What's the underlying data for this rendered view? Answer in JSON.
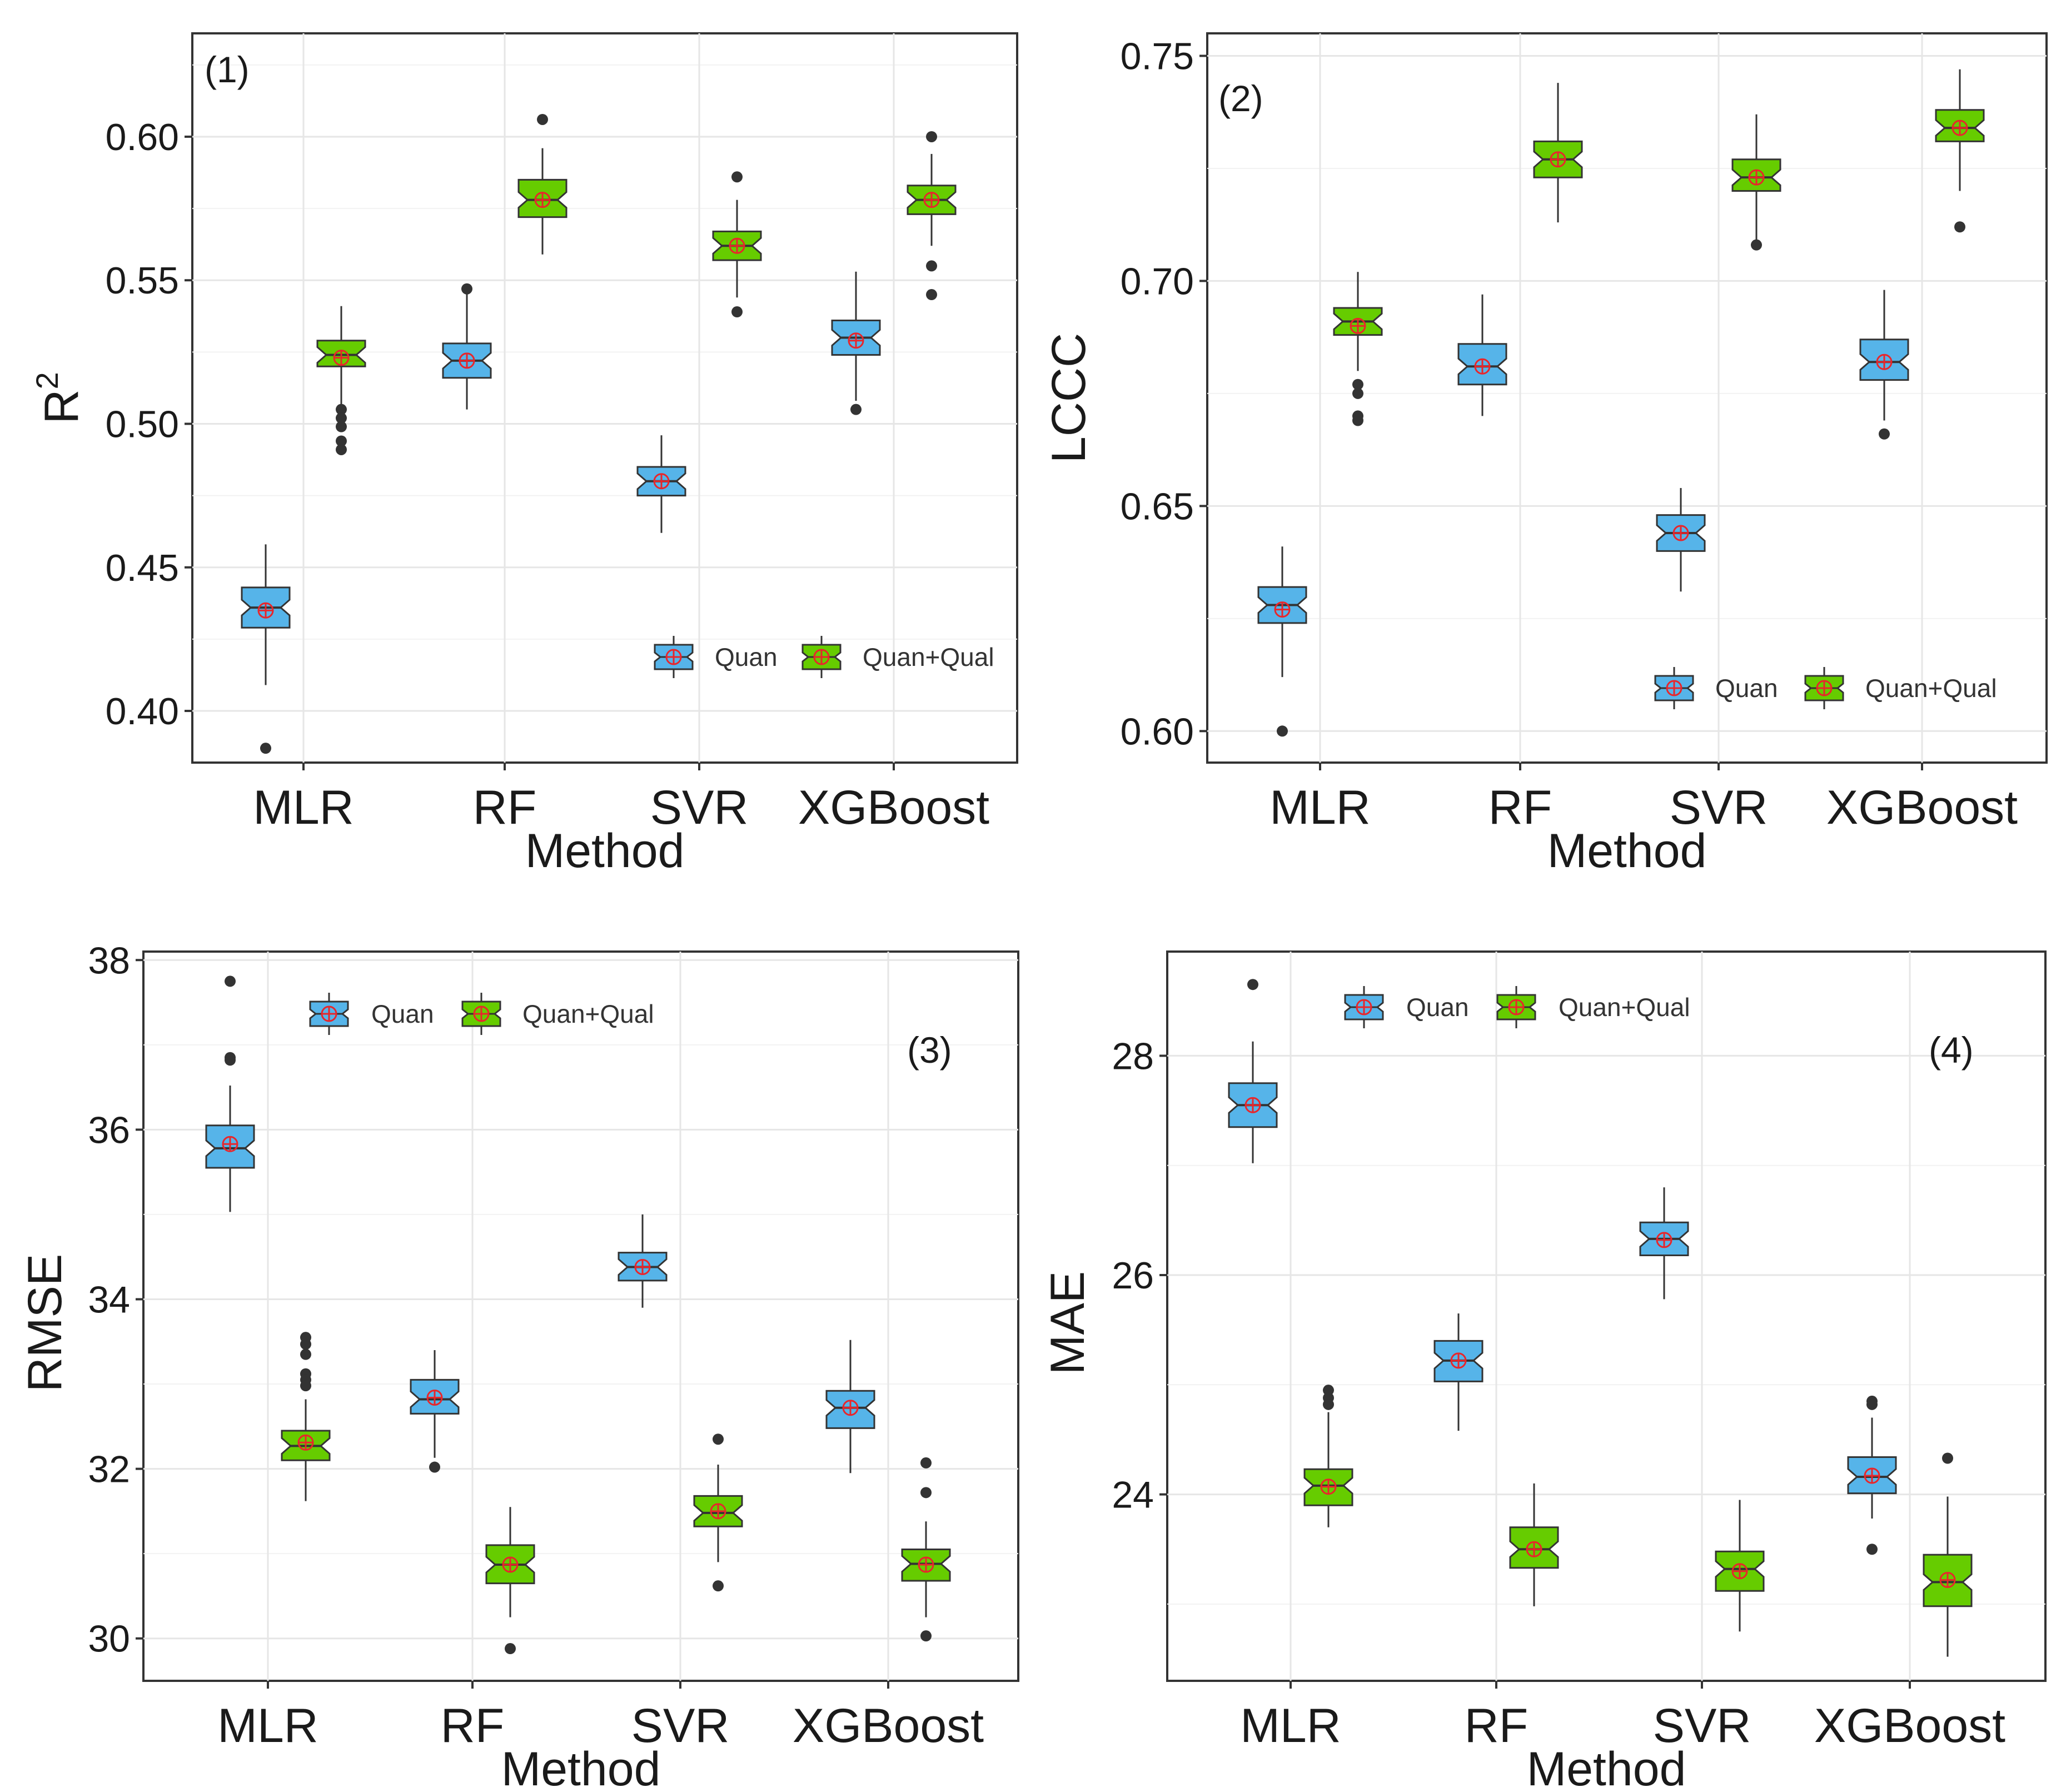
{
  "colors": {
    "quan": "#56B4E9",
    "quan_qual": "#66CC00",
    "mean_marker": "#E8262B",
    "outline": "#333333",
    "grid": "#e6e6e6"
  },
  "chart_data": [
    {
      "type": "box",
      "label": "(1)",
      "xlabel": "Method",
      "ylabel": "R",
      "ylabel_sup": "2",
      "ylim": [
        0.382,
        0.636
      ],
      "yticks": [
        0.4,
        0.45,
        0.5,
        0.55,
        0.6
      ],
      "ytick_labels": [
        "0.40",
        "0.45",
        "0.50",
        "0.55",
        "0.60"
      ],
      "legend_position": "bottom-right",
      "categories": [
        "MLR",
        "RF",
        "SVR",
        "XGBoost"
      ],
      "series": [
        {
          "name": "Quan",
          "color": "#56B4E9",
          "boxes": [
            {
              "min": 0.409,
              "q1": 0.429,
              "median": 0.436,
              "q3": 0.443,
              "max": 0.458,
              "mean": 0.435,
              "outliers": [
                0.387
              ]
            },
            {
              "min": 0.505,
              "q1": 0.516,
              "median": 0.522,
              "q3": 0.528,
              "max": 0.546,
              "mean": 0.522,
              "outliers": [
                0.547
              ]
            },
            {
              "min": 0.462,
              "q1": 0.475,
              "median": 0.48,
              "q3": 0.485,
              "max": 0.496,
              "mean": 0.48,
              "outliers": []
            },
            {
              "min": 0.508,
              "q1": 0.524,
              "median": 0.53,
              "q3": 0.536,
              "max": 0.553,
              "mean": 0.529,
              "outliers": [
                0.505
              ]
            }
          ]
        },
        {
          "name": "Quan+Qual",
          "color": "#66CC00",
          "boxes": [
            {
              "min": 0.506,
              "q1": 0.52,
              "median": 0.524,
              "q3": 0.529,
              "max": 0.541,
              "mean": 0.523,
              "outliers": [
                0.505,
                0.502,
                0.499,
                0.494,
                0.491
              ]
            },
            {
              "min": 0.559,
              "q1": 0.572,
              "median": 0.578,
              "q3": 0.585,
              "max": 0.596,
              "mean": 0.578,
              "outliers": [
                0.606
              ]
            },
            {
              "min": 0.544,
              "q1": 0.557,
              "median": 0.562,
              "q3": 0.567,
              "max": 0.578,
              "mean": 0.562,
              "outliers": [
                0.539,
                0.586
              ]
            },
            {
              "min": 0.562,
              "q1": 0.573,
              "median": 0.578,
              "q3": 0.583,
              "max": 0.594,
              "mean": 0.578,
              "outliers": [
                0.6,
                0.555,
                0.545
              ]
            }
          ]
        }
      ]
    },
    {
      "type": "box",
      "label": "(2)",
      "xlabel": "Method",
      "ylabel": "LCCC",
      "ylabel_sup": "",
      "ylim": [
        0.593,
        0.755
      ],
      "yticks": [
        0.6,
        0.65,
        0.7,
        0.75
      ],
      "ytick_labels": [
        "0.60",
        "0.65",
        "0.70",
        "0.75"
      ],
      "legend_position": "bottom-right",
      "categories": [
        "MLR",
        "RF",
        "SVR",
        "XGBoost"
      ],
      "series": [
        {
          "name": "Quan",
          "color": "#56B4E9",
          "boxes": [
            {
              "min": 0.612,
              "q1": 0.624,
              "median": 0.628,
              "q3": 0.632,
              "max": 0.641,
              "mean": 0.627,
              "outliers": [
                0.6
              ]
            },
            {
              "min": 0.67,
              "q1": 0.677,
              "median": 0.681,
              "q3": 0.686,
              "max": 0.697,
              "mean": 0.681,
              "outliers": []
            },
            {
              "min": 0.631,
              "q1": 0.64,
              "median": 0.644,
              "q3": 0.648,
              "max": 0.654,
              "mean": 0.644,
              "outliers": []
            },
            {
              "min": 0.669,
              "q1": 0.678,
              "median": 0.682,
              "q3": 0.687,
              "max": 0.698,
              "mean": 0.682,
              "outliers": [
                0.666
              ]
            }
          ]
        },
        {
          "name": "Quan+Qual",
          "color": "#66CC00",
          "boxes": [
            {
              "min": 0.68,
              "q1": 0.688,
              "median": 0.691,
              "q3": 0.694,
              "max": 0.702,
              "mean": 0.69,
              "outliers": [
                0.677,
                0.675,
                0.67,
                0.669
              ]
            },
            {
              "min": 0.713,
              "q1": 0.723,
              "median": 0.727,
              "q3": 0.731,
              "max": 0.744,
              "mean": 0.727,
              "outliers": []
            },
            {
              "min": 0.709,
              "q1": 0.72,
              "median": 0.723,
              "q3": 0.727,
              "max": 0.737,
              "mean": 0.723,
              "outliers": [
                0.708
              ]
            },
            {
              "min": 0.72,
              "q1": 0.731,
              "median": 0.734,
              "q3": 0.738,
              "max": 0.747,
              "mean": 0.734,
              "outliers": [
                0.712
              ]
            }
          ]
        }
      ]
    },
    {
      "type": "box",
      "label": "(3)",
      "xlabel": "Method",
      "ylabel": "RMSE",
      "ylabel_sup": "",
      "ylim": [
        29.5,
        38.1
      ],
      "yticks": [
        30,
        32,
        34,
        36,
        38
      ],
      "ytick_labels": [
        "30",
        "32",
        "34",
        "36",
        "38"
      ],
      "legend_position": "top-left",
      "categories": [
        "MLR",
        "RF",
        "SVR",
        "XGBoost"
      ],
      "series": [
        {
          "name": "Quan",
          "color": "#56B4E9",
          "boxes": [
            {
              "min": 35.03,
              "q1": 35.55,
              "median": 35.78,
              "q3": 36.05,
              "max": 36.52,
              "mean": 35.83,
              "outliers": [
                37.75,
                36.85,
                36.82
              ]
            },
            {
              "min": 32.13,
              "q1": 32.65,
              "median": 32.82,
              "q3": 33.05,
              "max": 33.4,
              "mean": 32.84,
              "outliers": [
                32.02
              ]
            },
            {
              "min": 33.9,
              "q1": 34.22,
              "median": 34.38,
              "q3": 34.55,
              "max": 35.0,
              "mean": 34.38,
              "outliers": []
            },
            {
              "min": 31.95,
              "q1": 32.48,
              "median": 32.72,
              "q3": 32.92,
              "max": 33.52,
              "mean": 32.72,
              "outliers": []
            }
          ]
        },
        {
          "name": "Quan+Qual",
          "color": "#66CC00",
          "boxes": [
            {
              "min": 31.62,
              "q1": 32.1,
              "median": 32.27,
              "q3": 32.45,
              "max": 32.82,
              "mean": 32.31,
              "outliers": [
                33.55,
                33.47,
                33.35,
                33.12,
                33.05,
                32.98
              ]
            },
            {
              "min": 30.25,
              "q1": 30.65,
              "median": 30.87,
              "q3": 31.1,
              "max": 31.55,
              "mean": 30.87,
              "outliers": [
                29.88
              ]
            },
            {
              "min": 30.9,
              "q1": 31.32,
              "median": 31.48,
              "q3": 31.68,
              "max": 32.05,
              "mean": 31.5,
              "outliers": [
                32.35,
                30.62
              ]
            },
            {
              "min": 30.25,
              "q1": 30.68,
              "median": 30.88,
              "q3": 31.05,
              "max": 31.38,
              "mean": 30.87,
              "outliers": [
                32.07,
                31.72,
                30.03
              ]
            }
          ]
        }
      ]
    },
    {
      "type": "box",
      "label": "(4)",
      "xlabel": "Method",
      "ylabel": "MAE",
      "ylabel_sup": "",
      "ylim": [
        22.3,
        28.95
      ],
      "yticks": [
        24,
        26,
        28
      ],
      "ytick_labels": [
        "24",
        "26",
        "28"
      ],
      "legend_position": "top-left",
      "categories": [
        "MLR",
        "RF",
        "SVR",
        "XGBoost"
      ],
      "series": [
        {
          "name": "Quan",
          "color": "#56B4E9",
          "boxes": [
            {
              "min": 27.02,
              "q1": 27.35,
              "median": 27.55,
              "q3": 27.75,
              "max": 28.13,
              "mean": 27.55,
              "outliers": [
                28.65
              ]
            },
            {
              "min": 24.58,
              "q1": 25.03,
              "median": 25.22,
              "q3": 25.4,
              "max": 25.65,
              "mean": 25.22,
              "outliers": []
            },
            {
              "min": 25.78,
              "q1": 26.18,
              "median": 26.33,
              "q3": 26.48,
              "max": 26.8,
              "mean": 26.32,
              "outliers": []
            },
            {
              "min": 23.78,
              "q1": 24.01,
              "median": 24.16,
              "q3": 24.34,
              "max": 24.7,
              "mean": 24.17,
              "outliers": [
                24.85,
                24.82,
                23.5
              ]
            }
          ]
        },
        {
          "name": "Quan+Qual",
          "color": "#66CC00",
          "boxes": [
            {
              "min": 23.7,
              "q1": 23.9,
              "median": 24.08,
              "q3": 24.23,
              "max": 24.75,
              "mean": 24.07,
              "outliers": [
                24.95,
                24.88,
                24.82
              ]
            },
            {
              "min": 22.98,
              "q1": 23.33,
              "median": 23.5,
              "q3": 23.7,
              "max": 24.1,
              "mean": 23.5,
              "outliers": []
            },
            {
              "min": 22.75,
              "q1": 23.12,
              "median": 23.32,
              "q3": 23.48,
              "max": 23.95,
              "mean": 23.3,
              "outliers": []
            },
            {
              "min": 22.52,
              "q1": 22.98,
              "median": 23.2,
              "q3": 23.45,
              "max": 23.98,
              "mean": 23.22,
              "outliers": [
                24.33
              ]
            }
          ]
        }
      ]
    }
  ]
}
